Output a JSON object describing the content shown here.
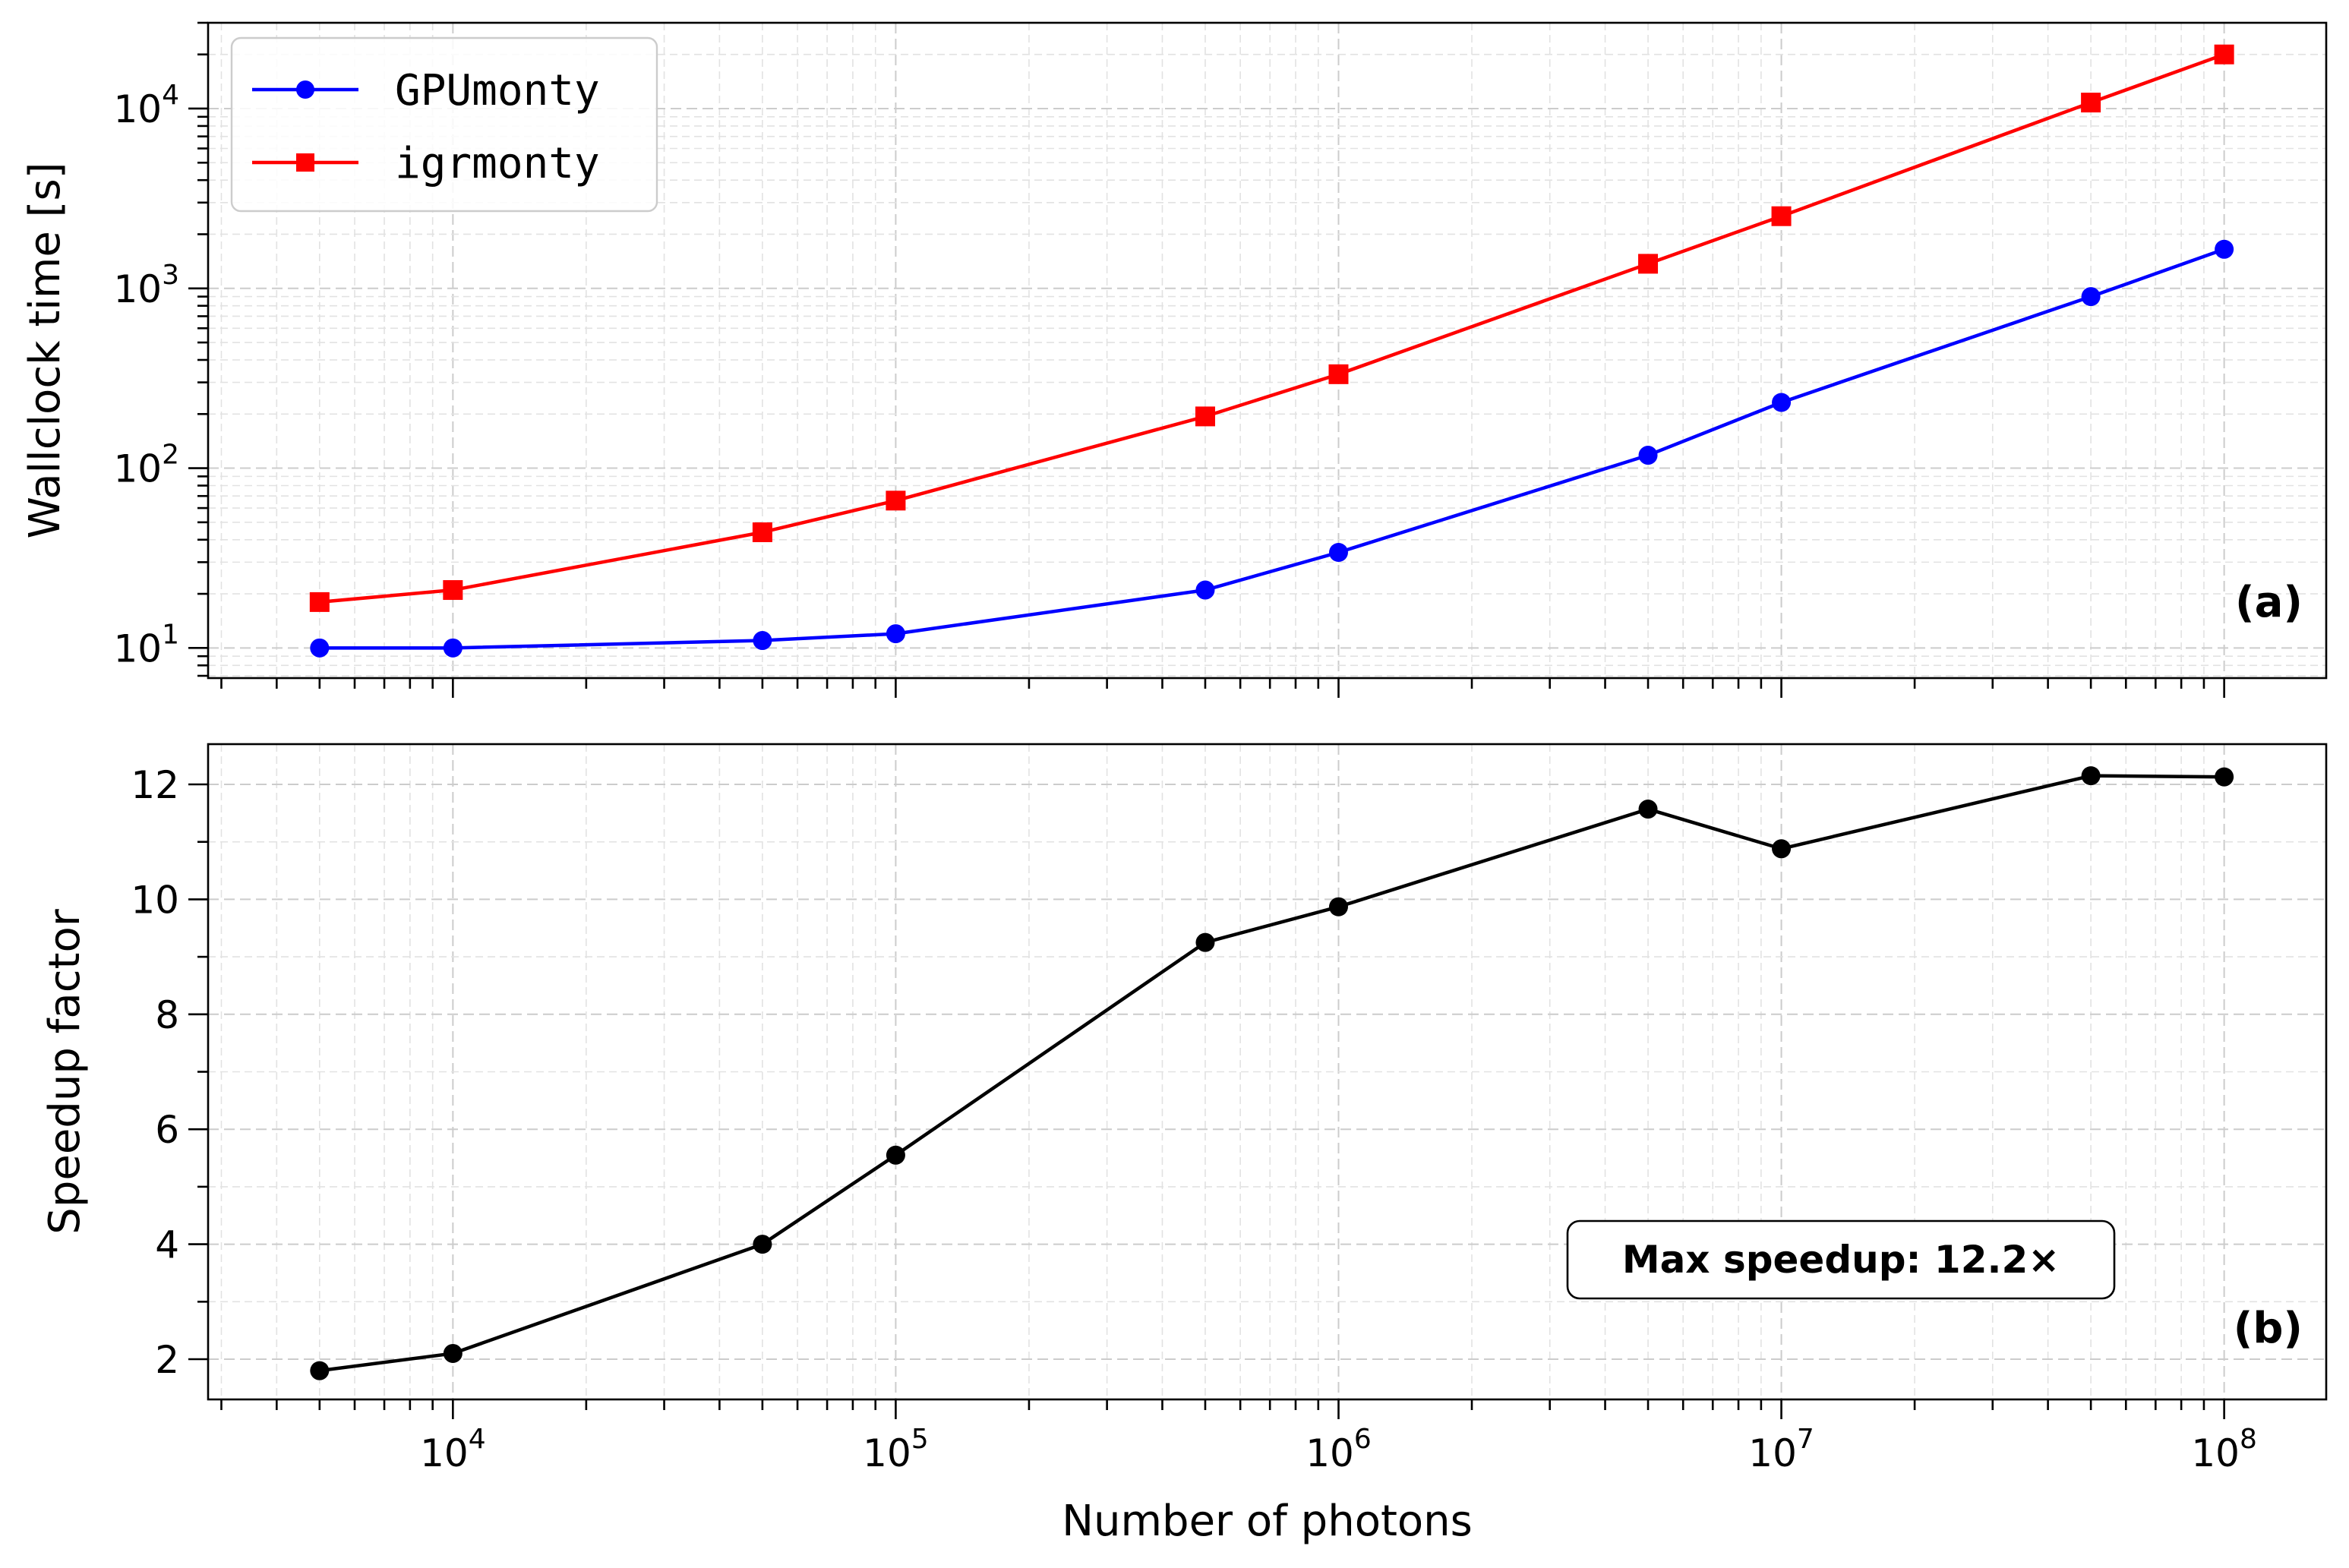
{
  "chart_data": [
    {
      "type": "line",
      "panel_label": "(a)",
      "xscale": "log",
      "yscale": "log",
      "xlim": [
        2800,
        170000000
      ],
      "ylim": [
        6.8,
        30000
      ],
      "xlabel": "",
      "ylabel": "Wallclock time [s]",
      "grid": true,
      "legend": "top-left",
      "x": [
        5000,
        10000,
        50000,
        100000,
        500000,
        1000000,
        5000000,
        10000000,
        50000000,
        100000000
      ],
      "series": [
        {
          "name": "GPUmonty",
          "color": "#0000ff",
          "marker": "circle",
          "values": [
            10,
            10,
            11,
            12,
            21,
            34,
            118,
            232,
            900,
            1650
          ]
        },
        {
          "name": "igrmonty",
          "color": "#ff0000",
          "marker": "square",
          "values": [
            18,
            21,
            44,
            66,
            194,
            333,
            1370,
            2520,
            10800,
            20000
          ]
        }
      ],
      "ytick_labels": [
        {
          "value": 10,
          "base": "10",
          "exp": "1"
        },
        {
          "value": 100,
          "base": "10",
          "exp": "2"
        },
        {
          "value": 1000,
          "base": "10",
          "exp": "3"
        },
        {
          "value": 10000,
          "base": "10",
          "exp": "4"
        }
      ]
    },
    {
      "type": "line",
      "panel_label": "(b)",
      "xscale": "log",
      "yscale": "linear",
      "xlim": [
        2800,
        170000000
      ],
      "ylim": [
        1.3,
        12.7
      ],
      "xlabel": "Number of photons",
      "ylabel": "Speedup factor",
      "grid": true,
      "x": [
        5000,
        10000,
        50000,
        100000,
        500000,
        1000000,
        5000000,
        10000000,
        50000000,
        100000000
      ],
      "series": [
        {
          "color": "#000000",
          "marker": "circle",
          "values": [
            1.8,
            2.1,
            4.0,
            5.55,
            9.25,
            9.87,
            11.57,
            10.88,
            12.15,
            12.13
          ]
        }
      ],
      "yticks": [
        2,
        4,
        6,
        8,
        10,
        12
      ],
      "xtick_labels": [
        {
          "value": 10000,
          "base": "10",
          "exp": "4"
        },
        {
          "value": 100000,
          "base": "10",
          "exp": "5"
        },
        {
          "value": 1000000,
          "base": "10",
          "exp": "6"
        },
        {
          "value": 10000000,
          "base": "10",
          "exp": "7"
        },
        {
          "value": 100000000,
          "base": "10",
          "exp": "8"
        }
      ],
      "annotation": "Max speedup: 12.2×"
    }
  ]
}
